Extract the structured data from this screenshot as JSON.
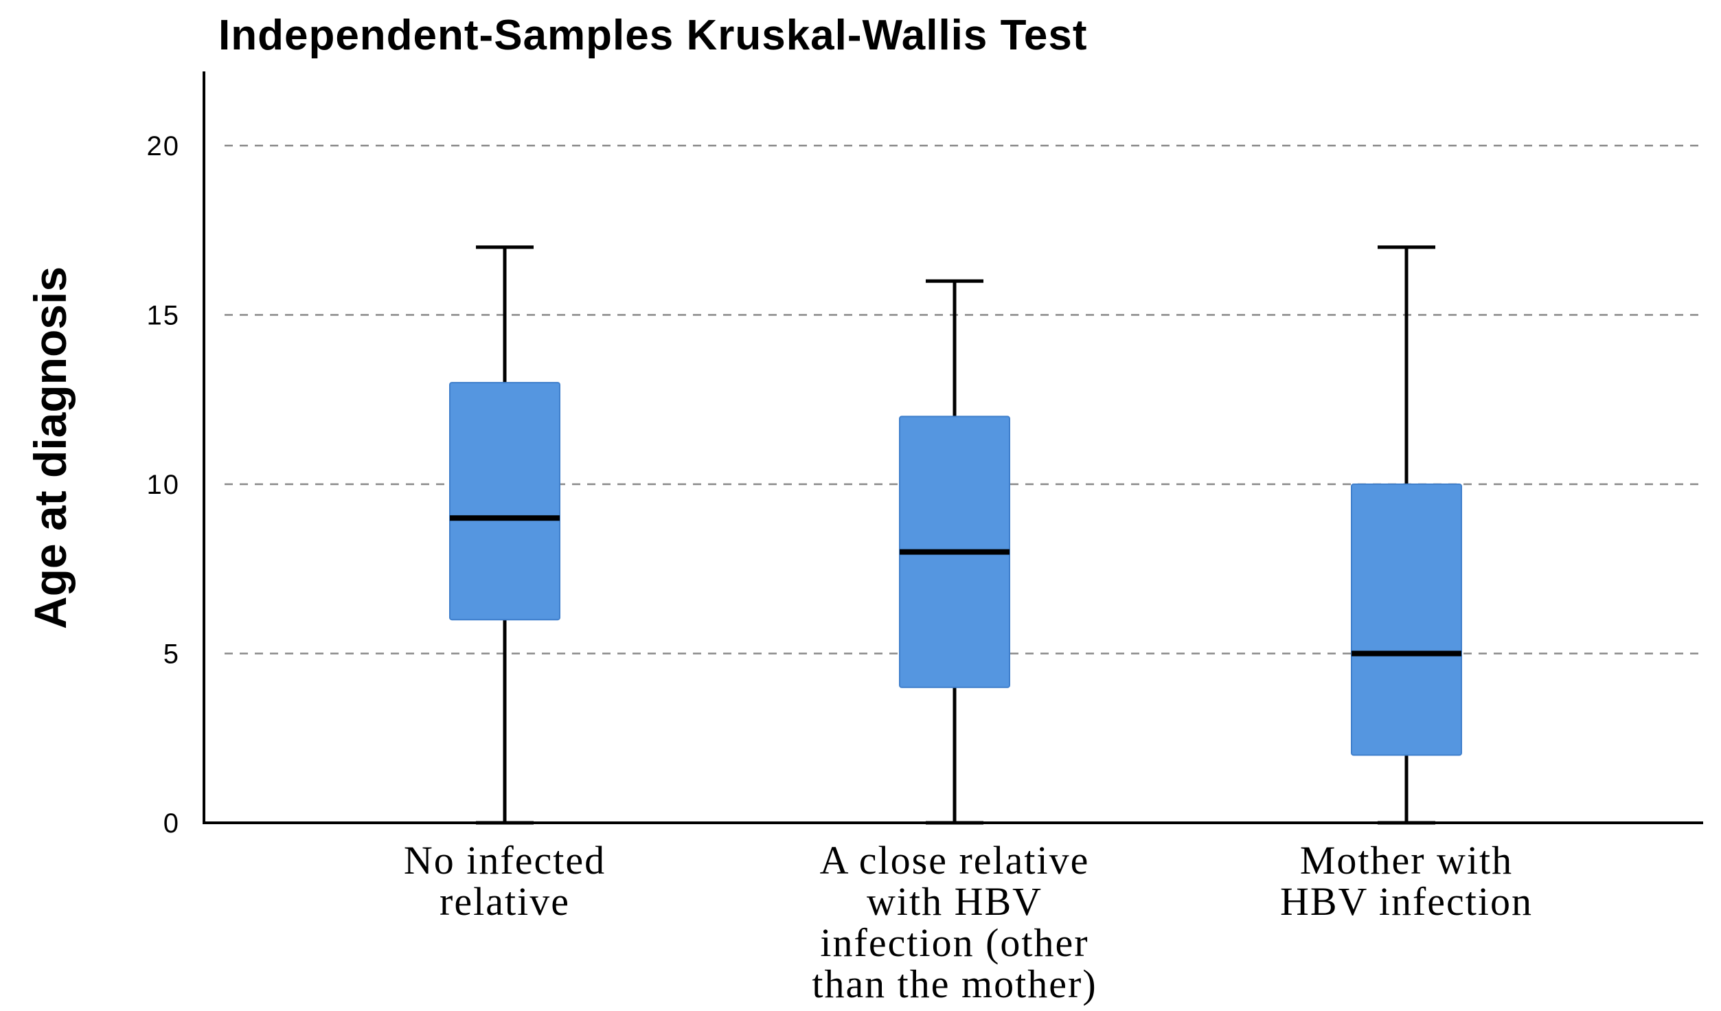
{
  "chart_data": {
    "type": "boxplot",
    "title": "Independent-Samples Kruskal-Wallis Test",
    "ylabel": "Age at diagnosis",
    "xlabel": "",
    "ylim": [
      0,
      22
    ],
    "yticks": [
      0,
      5,
      10,
      15,
      20
    ],
    "grid": true,
    "box_color": "#5596e0",
    "categories": [
      [
        "No infected",
        "relative"
      ],
      [
        "A close relative",
        "with HBV",
        "infection (other",
        "than the mother)"
      ],
      [
        "Mother with",
        "HBV infection"
      ]
    ],
    "boxes": [
      {
        "min": 0,
        "q1": 6,
        "median": 9,
        "q3": 13,
        "max": 17
      },
      {
        "min": 0,
        "q1": 4,
        "median": 8,
        "q3": 12,
        "max": 16
      },
      {
        "min": 0,
        "q1": 2,
        "median": 5,
        "q3": 10,
        "max": 17
      }
    ]
  }
}
